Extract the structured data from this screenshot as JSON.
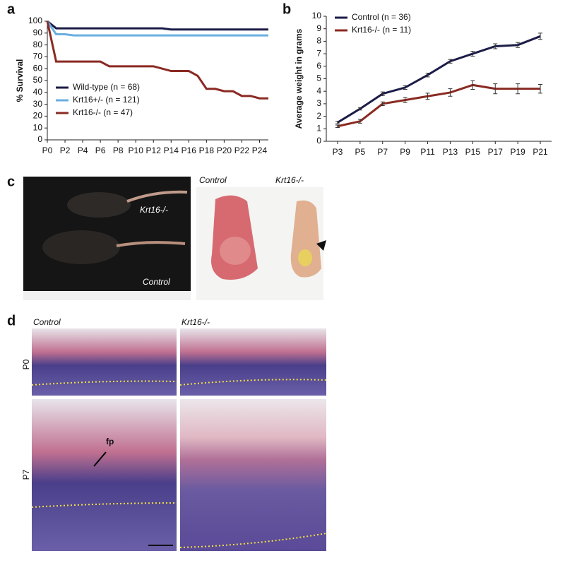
{
  "panels": {
    "a": "a",
    "b": "b",
    "c": "c",
    "d": "d"
  },
  "photo_c": {
    "mouse_ko": "Krt16-/-",
    "mouse_control": "Control",
    "paw_control": "Control",
    "paw_ko": "Krt16-/-"
  },
  "histology_d": {
    "col_control": "Control",
    "col_ko": "Krt16-/-",
    "row_p0": "P0",
    "row_p7": "P7",
    "arrow": "fp"
  },
  "chart_data": [
    {
      "type": "line",
      "ylabel": "% Survival",
      "x": [
        0,
        1,
        2,
        3,
        4,
        5,
        6,
        7,
        8,
        9,
        10,
        11,
        12,
        13,
        14,
        15,
        16,
        17,
        18,
        19,
        20,
        21,
        22,
        23,
        24,
        25
      ],
      "xlim": [
        0,
        25
      ],
      "xticks": [
        {
          "value": 0,
          "label": "P0"
        },
        {
          "value": 2,
          "label": "P2"
        },
        {
          "value": 4,
          "label": "P4"
        },
        {
          "value": 6,
          "label": "P6"
        },
        {
          "value": 8,
          "label": "P8"
        },
        {
          "value": 10,
          "label": "P10"
        },
        {
          "value": 12,
          "label": "P12"
        },
        {
          "value": 14,
          "label": "P14"
        },
        {
          "value": 16,
          "label": "P16"
        },
        {
          "value": 18,
          "label": "P18"
        },
        {
          "value": 20,
          "label": "P20"
        },
        {
          "value": 22,
          "label": "P22"
        },
        {
          "value": 24,
          "label": "P24"
        }
      ],
      "ylim": [
        0,
        100
      ],
      "yticks": [
        0,
        10,
        20,
        30,
        40,
        50,
        60,
        70,
        80,
        90,
        100
      ],
      "legend": "lower left",
      "series": [
        {
          "name": "Wild-type (n = 68)",
          "color": "#1c1c48",
          "values": [
            100,
            94,
            94,
            94,
            94,
            94,
            94,
            94,
            94,
            94,
            94,
            94,
            94,
            94,
            93,
            93,
            93,
            93,
            93,
            93,
            93,
            93,
            93,
            93,
            93,
            93
          ]
        },
        {
          "name": "Krt16+/- (n = 121)",
          "color": "#6aaee0",
          "values": [
            100,
            89,
            89,
            88,
            88,
            88,
            88,
            88,
            88,
            88,
            88,
            88,
            88,
            88,
            88,
            88,
            88,
            88,
            88,
            88,
            88,
            88,
            88,
            88,
            88,
            88
          ]
        },
        {
          "name": "Krt16-/- (n = 47)",
          "color": "#8a2a22",
          "values": [
            100,
            66,
            66,
            66,
            66,
            66,
            66,
            62,
            62,
            62,
            62,
            62,
            62,
            60,
            58,
            58,
            58,
            54,
            43,
            43,
            41,
            41,
            37,
            37,
            35,
            35
          ]
        }
      ]
    },
    {
      "type": "line",
      "ylabel": "Average weight in grams",
      "categories": [
        "P3",
        "P5",
        "P7",
        "P9",
        "P11",
        "P13",
        "P15",
        "P17",
        "P19",
        "P21"
      ],
      "ylim": [
        0,
        10
      ],
      "yticks": [
        0,
        1,
        2,
        3,
        4,
        5,
        6,
        7,
        8,
        9,
        10
      ],
      "legend": "upper left",
      "series": [
        {
          "name": "Control (n = 36)",
          "color": "#1c1c48",
          "values": [
            1.5,
            2.6,
            3.8,
            4.3,
            5.3,
            6.4,
            7.0,
            7.6,
            7.7,
            8.4
          ],
          "errors": [
            0.1,
            0.1,
            0.15,
            0.15,
            0.15,
            0.15,
            0.2,
            0.2,
            0.2,
            0.25
          ]
        },
        {
          "name": "Krt16-/- (n = 11)",
          "color": "#8a2a22",
          "values": [
            1.2,
            1.6,
            3.0,
            3.3,
            3.6,
            3.9,
            4.5,
            4.2,
            4.2,
            4.2
          ],
          "errors": [
            0.1,
            0.15,
            0.15,
            0.2,
            0.25,
            0.3,
            0.35,
            0.4,
            0.4,
            0.35
          ]
        }
      ]
    }
  ]
}
